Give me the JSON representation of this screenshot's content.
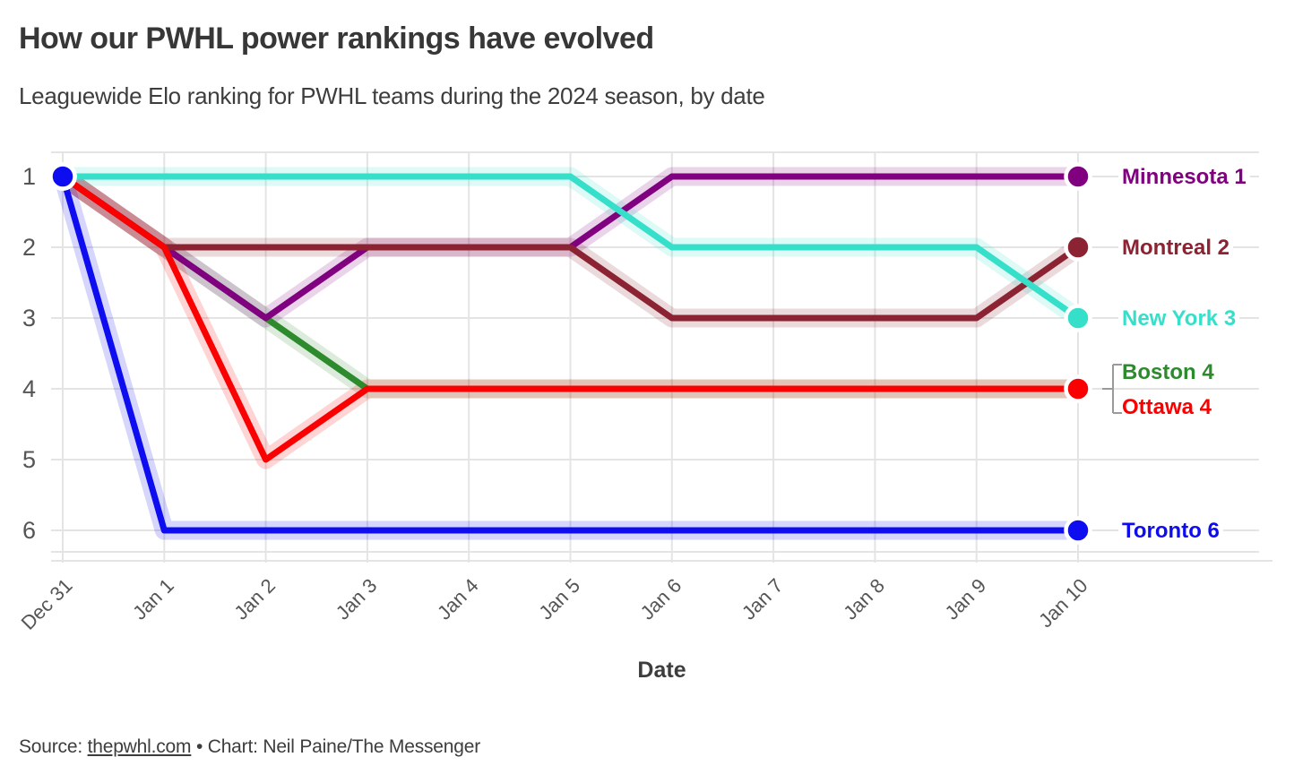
{
  "header": {
    "title": "How our PWHL power rankings have evolved",
    "subtitle": "Leaguewide Elo ranking for PWHL teams during the 2024 season, by date"
  },
  "chart_data": {
    "type": "line",
    "subtype": "bump-rank",
    "title": "How our PWHL power rankings have evolved",
    "subtitle": "Leaguewide Elo ranking for PWHL teams during the 2024 season, by date",
    "xlabel": "Date",
    "ylabel": "",
    "x": [
      "Dec 31",
      "Jan 1",
      "Jan 2",
      "Jan 3",
      "Jan 4",
      "Jan 5",
      "Jan 6",
      "Jan 7",
      "Jan 8",
      "Jan 9",
      "Jan 10"
    ],
    "y_ticks": [
      1,
      2,
      3,
      4,
      5,
      6
    ],
    "y_inverted": true,
    "ylim": [
      1,
      6
    ],
    "grid": true,
    "legend_position": "right-end-labels",
    "grid_color": "#e4e4e4",
    "tick_color": "#555555",
    "bracket_color": "#9a9a9a",
    "series": [
      {
        "name": "Boston",
        "label": "Boston 4",
        "final_rank": 4,
        "color": "#2d8b2d",
        "values": [
          1,
          2,
          3,
          4,
          4,
          4,
          4,
          4,
          4,
          4,
          4
        ]
      },
      {
        "name": "Minnesota",
        "label": "Minnesota 1",
        "final_rank": 1,
        "color": "#800080",
        "values": [
          1,
          2,
          3,
          2,
          2,
          2,
          1,
          1,
          1,
          1,
          1
        ]
      },
      {
        "name": "Montreal",
        "label": "Montreal 2",
        "final_rank": 2,
        "color": "#8b2332",
        "values": [
          1,
          2,
          2,
          2,
          2,
          2,
          3,
          3,
          3,
          3,
          2
        ]
      },
      {
        "name": "Ottawa",
        "label": "Ottawa 4",
        "final_rank": 4,
        "color": "#fa0000",
        "values": [
          1,
          2,
          5,
          4,
          4,
          4,
          4,
          4,
          4,
          4,
          4
        ]
      },
      {
        "name": "New York",
        "label": "New York 3",
        "final_rank": 3,
        "color": "#35dfca",
        "values": [
          1,
          1,
          1,
          1,
          1,
          1,
          2,
          2,
          2,
          2,
          3
        ]
      },
      {
        "name": "Toronto",
        "label": "Toronto 6",
        "final_rank": 6,
        "color": "#0d0df0",
        "values": [
          1,
          6,
          6,
          6,
          6,
          6,
          6,
          6,
          6,
          6,
          6
        ]
      }
    ]
  },
  "footer": {
    "source_prefix": "Source: ",
    "source_link": "thepwhl.com",
    "source_suffix": " • Chart: Neil Paine/The Messenger"
  }
}
